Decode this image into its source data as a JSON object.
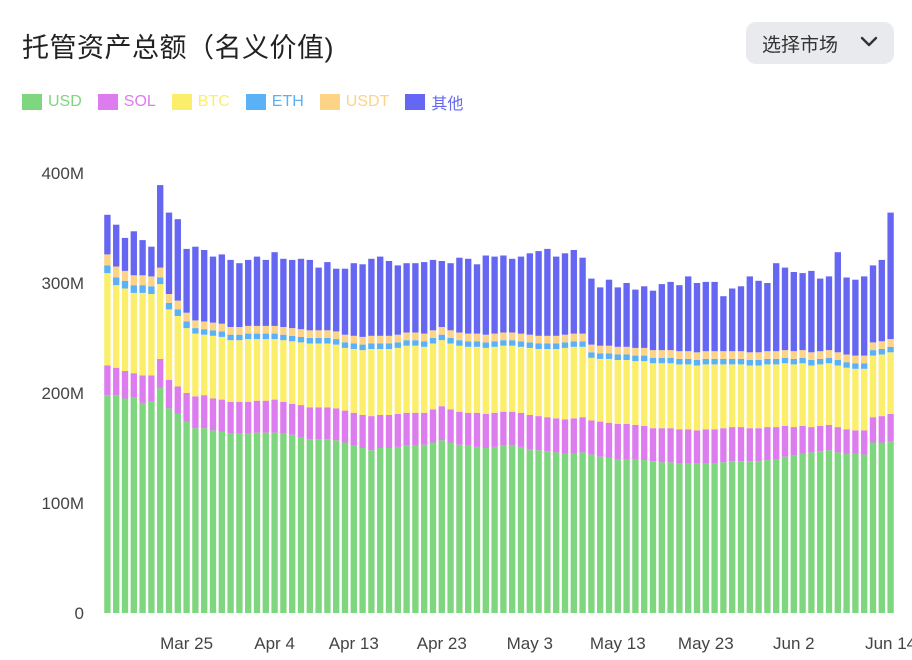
{
  "header": {
    "title": "托管资产总额（名义价值)",
    "market_button_label": "选择市场",
    "market_button_icon": "chevron-down-icon"
  },
  "chart_data": {
    "type": "bar",
    "stacked": true,
    "title": "托管资产总额（名义价值)",
    "ylim": [
      0,
      400
    ],
    "y_ticks": [
      0,
      100,
      200,
      300,
      400
    ],
    "y_tick_labels": [
      "0",
      "100M",
      "200M",
      "300M",
      "400M"
    ],
    "x_tick_labels": [
      "Mar 25",
      "Apr 4",
      "Apr 13",
      "Apr 23",
      "May 3",
      "May 13",
      "May 23",
      "Jun 2",
      "Jun 14"
    ],
    "x_tick_positions": [
      9,
      19,
      28,
      38,
      48,
      58,
      68,
      78,
      89
    ],
    "grid": false,
    "legend_position": "top-left",
    "series": [
      {
        "name": "USD",
        "color": "#7ed67e",
        "values": [
          198,
          198,
          195,
          196,
          191,
          192,
          205,
          186,
          181,
          174,
          168,
          168,
          166,
          165,
          163,
          163,
          163,
          164,
          164,
          164,
          163,
          162,
          160,
          158,
          158,
          158,
          157,
          155,
          152,
          150,
          148,
          150,
          150,
          151,
          152,
          152,
          153,
          155,
          157,
          155,
          153,
          152,
          151,
          150,
          151,
          152,
          152,
          151,
          149,
          148,
          147,
          146,
          145,
          145,
          146,
          144,
          142,
          141,
          140,
          140,
          140,
          139,
          138,
          137,
          137,
          136,
          136,
          136,
          136,
          136,
          137,
          138,
          138,
          138,
          138,
          139,
          140,
          142,
          143,
          145,
          146,
          147,
          148,
          146,
          145,
          145,
          144,
          155,
          155,
          156
        ]
      },
      {
        "name": "SOL",
        "color": "#dd7cee",
        "values": [
          27,
          25,
          25,
          22,
          25,
          24,
          26,
          26,
          25,
          26,
          29,
          30,
          29,
          29,
          29,
          29,
          29,
          29,
          29,
          30,
          29,
          28,
          29,
          29,
          29,
          29,
          29,
          29,
          30,
          30,
          31,
          30,
          30,
          30,
          30,
          30,
          29,
          30,
          31,
          30,
          30,
          30,
          31,
          31,
          31,
          31,
          31,
          31,
          31,
          31,
          31,
          31,
          31,
          32,
          32,
          31,
          32,
          32,
          32,
          32,
          31,
          31,
          30,
          31,
          31,
          31,
          31,
          30,
          31,
          31,
          31,
          31,
          31,
          30,
          30,
          30,
          29,
          28,
          26,
          25,
          23,
          23,
          23,
          23,
          22,
          21,
          22,
          23,
          24,
          25
        ]
      },
      {
        "name": "BTC",
        "color": "#fbee6a",
        "values": [
          84,
          75,
          75,
          73,
          75,
          74,
          68,
          64,
          64,
          59,
          57,
          55,
          57,
          57,
          56,
          56,
          57,
          56,
          56,
          55,
          56,
          57,
          57,
          58,
          58,
          58,
          58,
          57,
          58,
          59,
          61,
          60,
          60,
          60,
          61,
          61,
          60,
          60,
          60,
          60,
          60,
          60,
          60,
          60,
          60,
          60,
          60,
          60,
          61,
          61,
          62,
          63,
          65,
          65,
          64,
          57,
          57,
          58,
          58,
          58,
          58,
          59,
          59,
          59,
          59,
          59,
          59,
          59,
          59,
          59,
          58,
          57,
          57,
          57,
          57,
          57,
          57,
          57,
          57,
          57,
          56,
          56,
          56,
          56,
          56,
          56,
          56,
          56,
          56,
          56
        ]
      },
      {
        "name": "ETH",
        "color": "#5ab1f5",
        "values": [
          7,
          7,
          7,
          7,
          7,
          7,
          6,
          6,
          6,
          6,
          5,
          5,
          5,
          5,
          5,
          5,
          5,
          5,
          5,
          5,
          5,
          5,
          5,
          5,
          5,
          5,
          5,
          5,
          5,
          5,
          5,
          5,
          5,
          5,
          5,
          5,
          5,
          5,
          5,
          5,
          5,
          5,
          5,
          5,
          5,
          5,
          5,
          5,
          5,
          5,
          5,
          5,
          5,
          5,
          5,
          5,
          5,
          5,
          5,
          5,
          5,
          5,
          5,
          5,
          5,
          5,
          5,
          5,
          5,
          5,
          5,
          5,
          5,
          5,
          5,
          5,
          5,
          5,
          5,
          5,
          5,
          5,
          5,
          5,
          5,
          5,
          5,
          5,
          5,
          5
        ]
      },
      {
        "name": "USDT",
        "color": "#fdd386",
        "values": [
          10,
          10,
          9,
          9,
          9,
          9,
          9,
          8,
          8,
          8,
          7,
          7,
          7,
          7,
          7,
          7,
          7,
          7,
          7,
          7,
          7,
          7,
          7,
          7,
          7,
          7,
          7,
          7,
          7,
          7,
          7,
          7,
          7,
          7,
          7,
          7,
          7,
          7,
          7,
          7,
          7,
          7,
          7,
          7,
          7,
          7,
          7,
          7,
          7,
          7,
          7,
          7,
          7,
          7,
          7,
          7,
          7,
          7,
          7,
          7,
          7,
          7,
          7,
          7,
          7,
          7,
          7,
          7,
          7,
          7,
          7,
          7,
          7,
          7,
          7,
          7,
          7,
          7,
          7,
          7,
          7,
          7,
          7,
          7,
          7,
          7,
          7,
          7,
          7,
          7
        ]
      },
      {
        "name": "其他",
        "color": "#6566f2",
        "values": [
          36,
          38,
          30,
          40,
          32,
          27,
          75,
          74,
          74,
          58,
          67,
          65,
          60,
          63,
          61,
          58,
          60,
          63,
          60,
          67,
          62,
          62,
          64,
          64,
          57,
          62,
          57,
          60,
          66,
          66,
          70,
          72,
          68,
          63,
          63,
          63,
          65,
          64,
          60,
          61,
          68,
          68,
          63,
          72,
          70,
          70,
          67,
          70,
          74,
          77,
          79,
          72,
          74,
          76,
          69,
          60,
          53,
          60,
          54,
          58,
          53,
          56,
          54,
          60,
          62,
          60,
          68,
          63,
          63,
          63,
          50,
          57,
          59,
          69,
          65,
          62,
          80,
          75,
          72,
          70,
          74,
          66,
          67,
          91,
          70,
          69,
          72,
          70,
          74,
          115
        ]
      }
    ]
  }
}
